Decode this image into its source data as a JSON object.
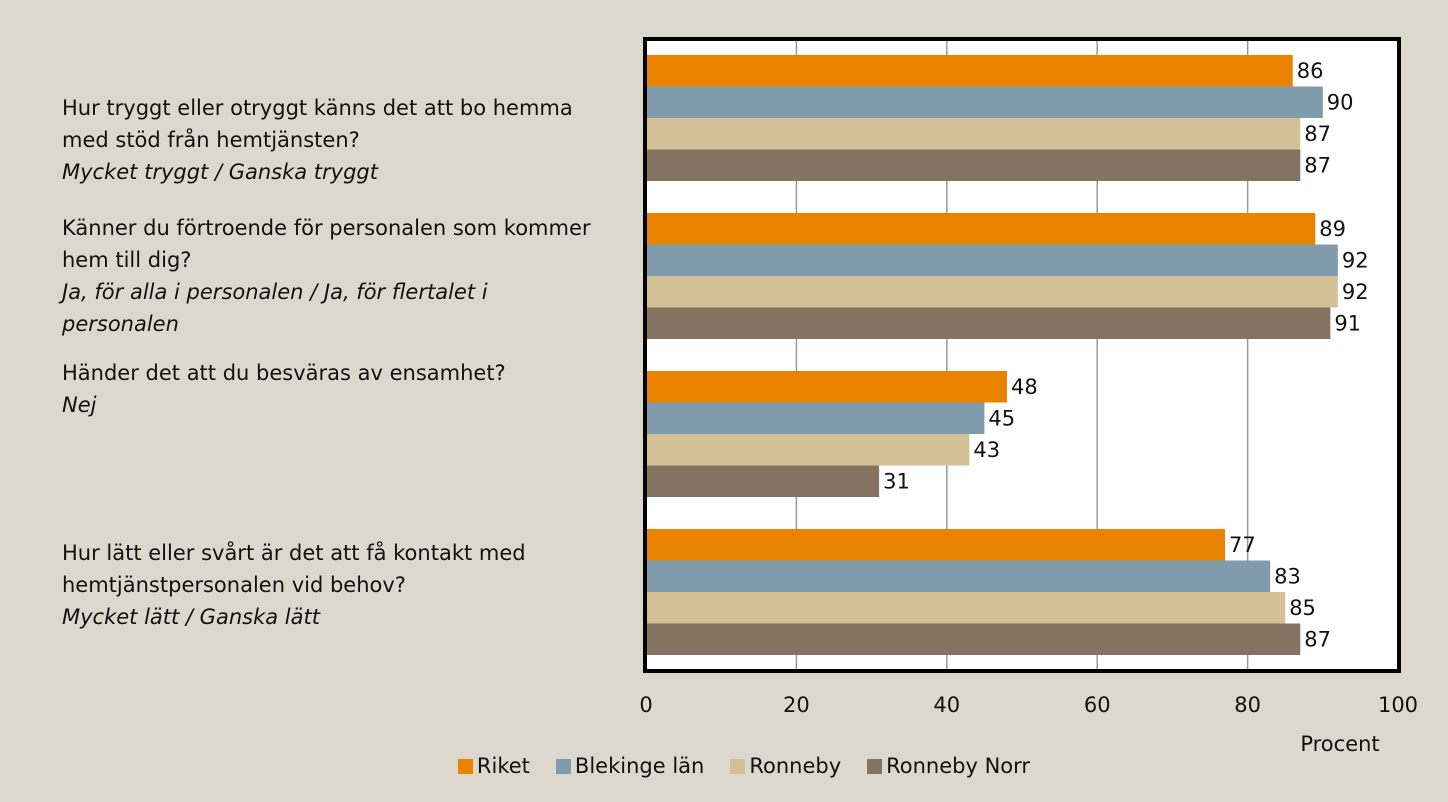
{
  "chart_data": {
    "type": "barh",
    "categories": [
      {
        "question": "Hur tryggt eller otryggt känns det att bo hemma med stöd från hemtjänsten?",
        "answer": "Mycket tryggt / Ganska tryggt"
      },
      {
        "question": "Känner du förtroende för personalen som kommer hem till dig?",
        "answer": "Ja, för alla i personalen / Ja, för flertalet i personalen"
      },
      {
        "question": "Händer det att du besväras av ensamhet?",
        "answer": "Nej"
      },
      {
        "question": "Hur lätt eller svårt är det att få kontakt med hemtjänstpersonalen vid behov?",
        "answer": "Mycket lätt / Ganska lätt"
      }
    ],
    "series": [
      {
        "name": "Riket",
        "color": "#e98300",
        "values": [
          86,
          89,
          48,
          77
        ]
      },
      {
        "name": "Blekinge län",
        "color": "#7f9bac",
        "values": [
          90,
          92,
          45,
          83
        ]
      },
      {
        "name": "Ronneby",
        "color": "#d4c096",
        "values": [
          87,
          92,
          43,
          85
        ]
      },
      {
        "name": "Ronneby Norr",
        "color": "#857362",
        "values": [
          87,
          91,
          31,
          87
        ]
      }
    ],
    "xlabel": "Procent",
    "xlim": [
      0,
      100
    ],
    "xticks": [
      0,
      20,
      40,
      60,
      80,
      100
    ],
    "grid": true,
    "legend": "bottom"
  }
}
